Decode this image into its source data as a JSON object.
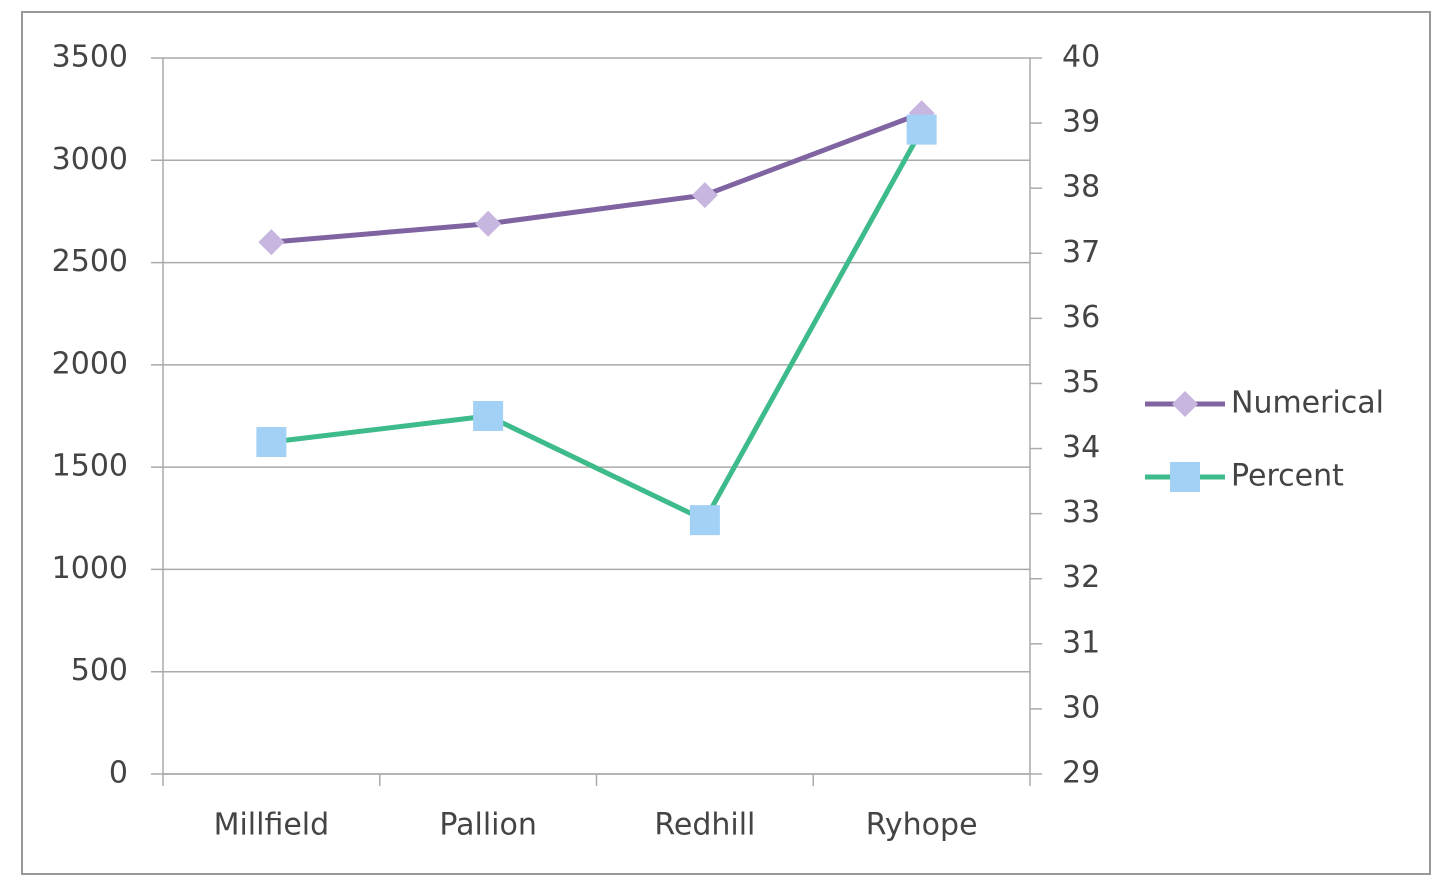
{
  "chart_data": {
    "type": "line",
    "categories": [
      "Millfield",
      "Pallion",
      "Redhill",
      "Ryhope"
    ],
    "series": [
      {
        "name": "Numerical",
        "color": "#8064a2",
        "marker_color": "#c6b6e0",
        "marker": "diamond",
        "values": [
          2600,
          2690,
          2830,
          3230
        ]
      },
      {
        "name": "Percent",
        "color": "#3dbb8a",
        "marker_color": "#a3d0f5",
        "marker": "square",
        "axis": "y2",
        "values": [
          34.1,
          34.5,
          32.9,
          38.9
        ]
      }
    ],
    "ylim": [
      0,
      3500
    ],
    "yticks": [
      0,
      500,
      1000,
      1500,
      2000,
      2500,
      3000,
      3500
    ],
    "y2lim": [
      29,
      40
    ],
    "y2ticks": [
      29,
      30,
      31,
      32,
      33,
      34,
      35,
      36,
      37,
      38,
      39,
      40
    ],
    "grid": true,
    "legend": "right"
  }
}
